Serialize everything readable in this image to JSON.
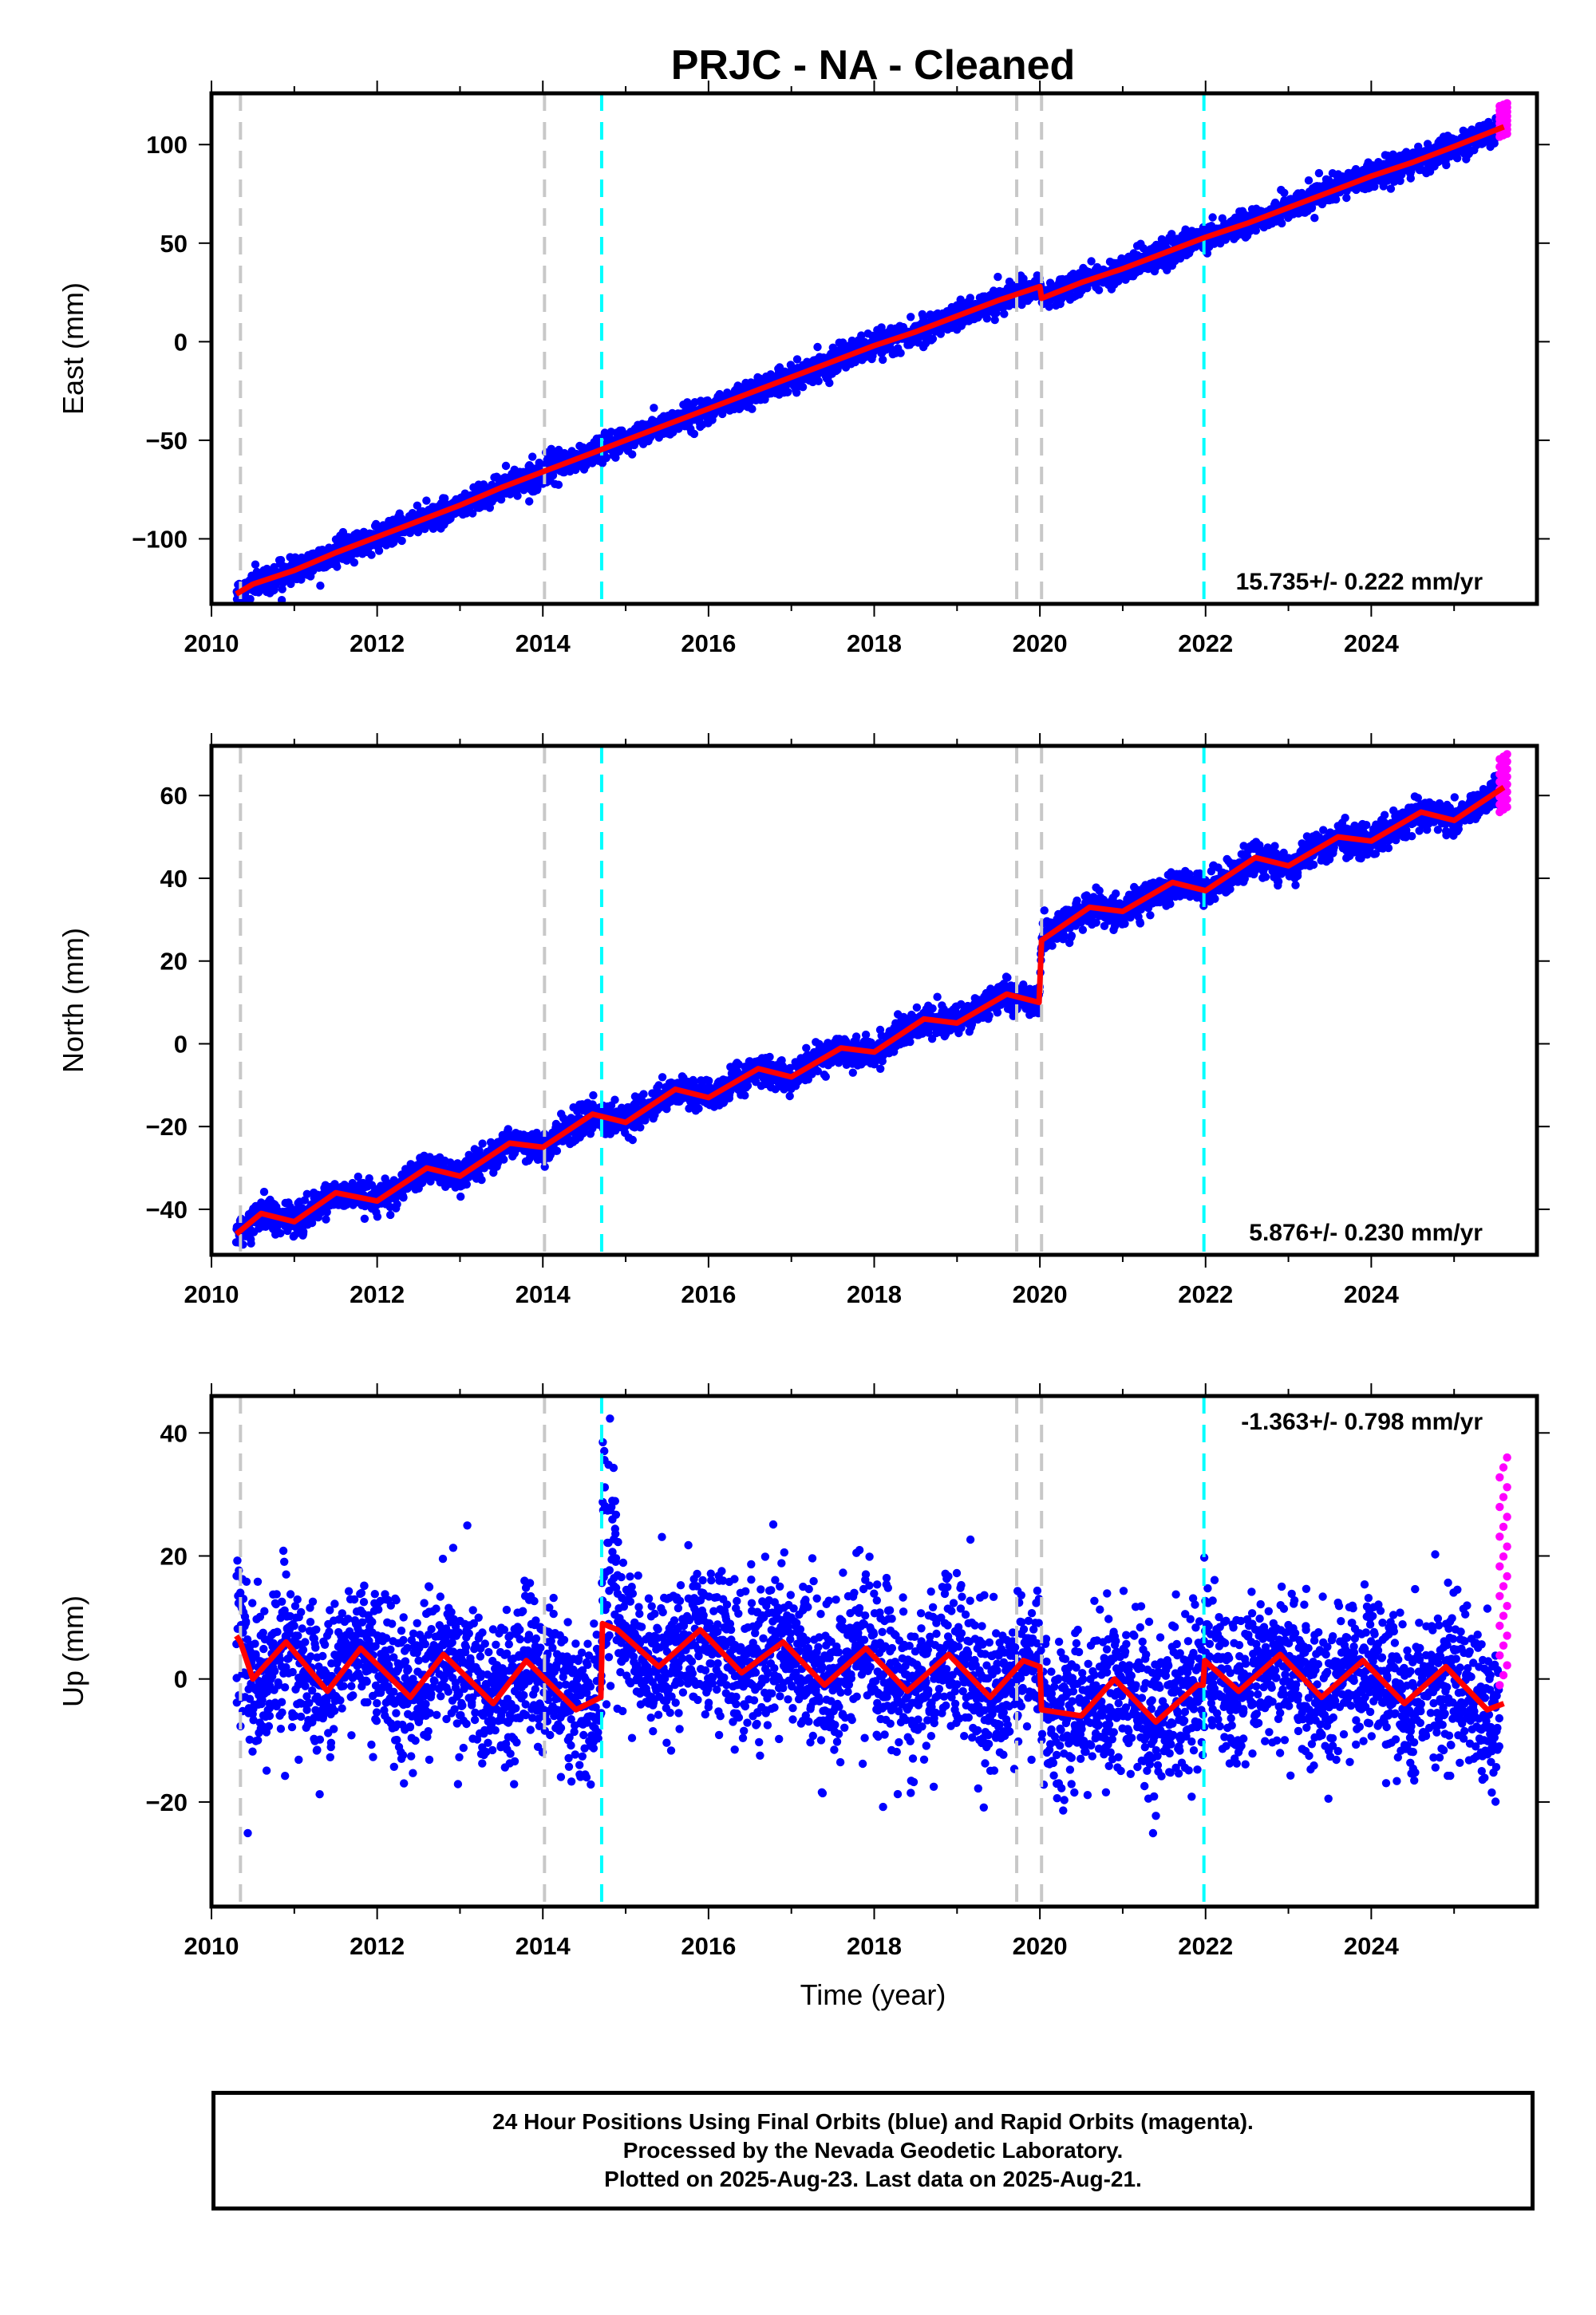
{
  "title": "PRJC  - NA - Cleaned",
  "xlabel": "Time (year)",
  "caption": {
    "line1": "24 Hour Positions Using Final Orbits (blue) and Rapid Orbits (magenta).",
    "line2": "Processed by the Nevada Geodetic Laboratory.",
    "line3": "Plotted on 2025-Aug-23. Last data on 2025-Aug-21."
  },
  "colors": {
    "final_orbits": "#0000ff",
    "rapid_orbits": "#ff00ff",
    "model": "#ff0000",
    "equipment_change": "#c8c8c8",
    "earthquake": "#00ffff"
  },
  "chart_data": [
    {
      "type": "scatter",
      "ylabel": "East (mm)",
      "xlim": [
        2010,
        2026.0
      ],
      "ylim": [
        -133,
        126
      ],
      "xticks": [
        "2010",
        "2012",
        "2014",
        "2016",
        "2018",
        "2020",
        "2022",
        "2024"
      ],
      "yticks": [
        "100",
        "50",
        "0",
        "−50",
        "−100"
      ],
      "ytick_values": [
        100,
        50,
        0,
        -50,
        -100
      ],
      "rate_label": "15.735+/- 0.222 mm/yr",
      "grey_lines": [
        2010.35,
        2014.02,
        2019.72,
        2020.02
      ],
      "cyan_lines": [
        2014.71,
        2021.98
      ],
      "model": {
        "x": [
          2010.3,
          2010.5,
          2011.0,
          2011.5,
          2012.0,
          2012.5,
          2013.0,
          2013.5,
          2014.0,
          2014.5,
          2015.0,
          2015.5,
          2016.0,
          2016.5,
          2017.0,
          2017.5,
          2018.0,
          2018.5,
          2019.0,
          2019.5,
          2020.0,
          2020.02,
          2020.5,
          2021.0,
          2021.5,
          2022.0,
          2022.5,
          2023.0,
          2023.5,
          2024.0,
          2024.5,
          2025.0,
          2025.6
        ],
        "y": [
          -128,
          -123,
          -116,
          -107,
          -99,
          -91,
          -83,
          -74,
          -66,
          -58,
          -50,
          -42,
          -34,
          -26,
          -18,
          -10,
          -2,
          5,
          13,
          21,
          28,
          22,
          30,
          37,
          45,
          53,
          60,
          68,
          76,
          84,
          91,
          99,
          109
        ]
      },
      "final_orbits": {
        "name": "Final Orbits",
        "x_start": 2010.3,
        "x_end": 2025.55,
        "noise": 3.2
      },
      "rapid_orbits": {
        "name": "Rapid Orbits",
        "x_start": 2025.55,
        "x_end": 2025.64,
        "y_range": [
          104,
          121
        ]
      }
    },
    {
      "type": "scatter",
      "ylabel": "North (mm)",
      "xlim": [
        2010,
        2026.0
      ],
      "ylim": [
        -51,
        72
      ],
      "xticks": [
        "2010",
        "2012",
        "2014",
        "2016",
        "2018",
        "2020",
        "2022",
        "2024"
      ],
      "yticks": [
        "60",
        "40",
        "20",
        "0",
        "−20",
        "−40"
      ],
      "ytick_values": [
        60,
        40,
        20,
        0,
        -20,
        -40
      ],
      "rate_label": "5.876+/- 0.230 mm/yr",
      "grey_lines": [
        2010.35,
        2014.02,
        2019.72,
        2020.02
      ],
      "cyan_lines": [
        2014.71,
        2021.98
      ],
      "model": {
        "x": [
          2010.3,
          2010.6,
          2011.0,
          2011.5,
          2012.0,
          2012.6,
          2013.0,
          2013.6,
          2014.0,
          2014.6,
          2015.0,
          2015.6,
          2016.0,
          2016.6,
          2017.0,
          2017.6,
          2018.0,
          2018.6,
          2019.0,
          2019.6,
          2019.99,
          2020.02,
          2020.6,
          2021.0,
          2021.6,
          2022.0,
          2022.6,
          2023.0,
          2023.6,
          2024.0,
          2024.6,
          2025.0,
          2025.6
        ],
        "y": [
          -46,
          -41,
          -43,
          -36,
          -38,
          -30,
          -32,
          -24,
          -25,
          -17,
          -19,
          -11,
          -13,
          -6,
          -8,
          -1,
          -2,
          6,
          5,
          12,
          10,
          25,
          33,
          32,
          39,
          37,
          45,
          43,
          50,
          49,
          56,
          54,
          62
        ]
      },
      "final_orbits": {
        "name": "Final Orbits",
        "x_start": 2010.3,
        "x_end": 2025.55,
        "noise": 1.8
      },
      "rapid_orbits": {
        "name": "Rapid Orbits",
        "x_start": 2025.55,
        "x_end": 2025.64,
        "y_range": [
          56,
          70
        ]
      }
    },
    {
      "type": "scatter",
      "ylabel": "Up (mm)",
      "xlim": [
        2010,
        2026.0
      ],
      "ylim": [
        -37,
        46
      ],
      "xticks": [
        "2010",
        "2012",
        "2014",
        "2016",
        "2018",
        "2020",
        "2022",
        "2024"
      ],
      "yticks": [
        "40",
        "20",
        "0",
        "−20"
      ],
      "ytick_values": [
        40,
        20,
        0,
        -20
      ],
      "rate_label": "-1.363+/- 0.798 mm/yr",
      "grey_lines": [
        2010.35,
        2014.02,
        2019.72,
        2020.02
      ],
      "cyan_lines": [
        2014.71,
        2021.98
      ],
      "model": {
        "x": [
          2010.3,
          2010.35,
          2010.5,
          2010.9,
          2011.4,
          2011.8,
          2012.4,
          2012.8,
          2013.4,
          2013.8,
          2014.4,
          2014.7,
          2014.72,
          2014.9,
          2015.4,
          2015.9,
          2016.4,
          2016.9,
          2017.4,
          2017.9,
          2018.4,
          2018.9,
          2019.4,
          2019.8,
          2020.0,
          2020.02,
          2020.5,
          2020.9,
          2021.4,
          2021.9,
          2021.97,
          2021.99,
          2022.4,
          2022.9,
          2023.4,
          2023.9,
          2024.4,
          2024.9,
          2025.4,
          2025.6
        ],
        "y": [
          7,
          6,
          0,
          6,
          -2,
          5,
          -3,
          4,
          -4,
          3,
          -5,
          -3,
          9,
          8,
          2,
          8,
          1,
          6,
          -1,
          5,
          -2,
          4,
          -3,
          3,
          2,
          -5,
          -6,
          0,
          -7,
          -1,
          -1,
          3,
          -2,
          4,
          -3,
          3,
          -4,
          2,
          -5,
          -4
        ]
      },
      "final_orbits": {
        "name": "Final Orbits",
        "x_start": 2010.3,
        "x_end": 2025.55,
        "noise": 6.0
      },
      "rapid_orbits": {
        "name": "Rapid Orbits",
        "x_start": 2025.55,
        "x_end": 2025.64,
        "y_range": [
          -1,
          36
        ]
      }
    }
  ]
}
